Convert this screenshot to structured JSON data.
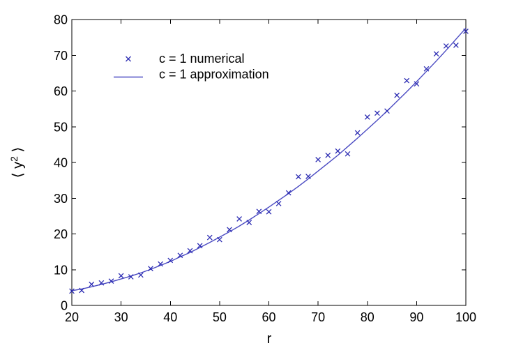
{
  "figure": {
    "background_color": "#ffffff",
    "axis_color": "#000000",
    "text_color": "#000000"
  },
  "chart_data": {
    "type": "scatter",
    "title": "",
    "xlabel": "r",
    "ylabel": "⟨ y² ⟩",
    "ylabel_open": "⟨ y",
    "ylabel_sup": "2",
    "ylabel_close": " ⟩",
    "xlim": [
      20,
      100
    ],
    "ylim": [
      0,
      80
    ],
    "xticks": [
      20,
      30,
      40,
      50,
      60,
      70,
      80,
      90,
      100
    ],
    "yticks": [
      0,
      10,
      20,
      30,
      40,
      50,
      60,
      70,
      80
    ],
    "grid": false,
    "box": true,
    "legend": {
      "border": false,
      "position": "upper-left-inside",
      "entries": [
        {
          "label": "c = 1 numerical",
          "symbol": "x-marker"
        },
        {
          "label": "c = 1 approximation",
          "symbol": "line"
        }
      ]
    },
    "x": [
      20,
      22,
      24,
      26,
      28,
      30,
      32,
      34,
      36,
      38,
      40,
      42,
      44,
      46,
      48,
      50,
      52,
      54,
      56,
      58,
      60,
      62,
      64,
      66,
      68,
      70,
      72,
      74,
      76,
      78,
      80,
      82,
      84,
      86,
      88,
      90,
      92,
      94,
      96,
      98,
      100
    ],
    "series": [
      {
        "name": "c = 1 numerical",
        "type": "scatter",
        "marker": "x",
        "color": "#2b2bb2",
        "values": [
          4.0,
          4.2,
          5.9,
          6.3,
          6.8,
          8.3,
          8.0,
          8.5,
          10.3,
          11.6,
          12.6,
          14.0,
          15.3,
          16.7,
          19.0,
          18.4,
          21.2,
          24.2,
          23.2,
          26.3,
          26.2,
          28.5,
          31.5,
          36.0,
          36.1,
          40.8,
          42.0,
          43.2,
          42.4,
          48.3,
          52.7,
          53.8,
          54.4,
          58.8,
          62.9,
          62.0,
          66.2,
          70.4,
          72.6,
          72.8,
          76.7
        ]
      },
      {
        "name": "c = 1 approximation",
        "type": "line",
        "color": "#4a4ac2",
        "values": [
          4.1,
          4.6,
          5.2,
          5.9,
          6.6,
          7.4,
          8.2,
          9.1,
          10.1,
          11.2,
          12.3,
          13.6,
          14.8,
          16.2,
          17.6,
          19.1,
          20.6,
          22.2,
          23.9,
          25.7,
          27.5,
          29.4,
          31.3,
          33.3,
          35.4,
          37.6,
          39.8,
          42.0,
          44.4,
          46.8,
          49.3,
          51.8,
          54.4,
          57.1,
          59.8,
          62.6,
          65.5,
          68.4,
          71.4,
          74.5,
          77.6
        ]
      }
    ]
  }
}
